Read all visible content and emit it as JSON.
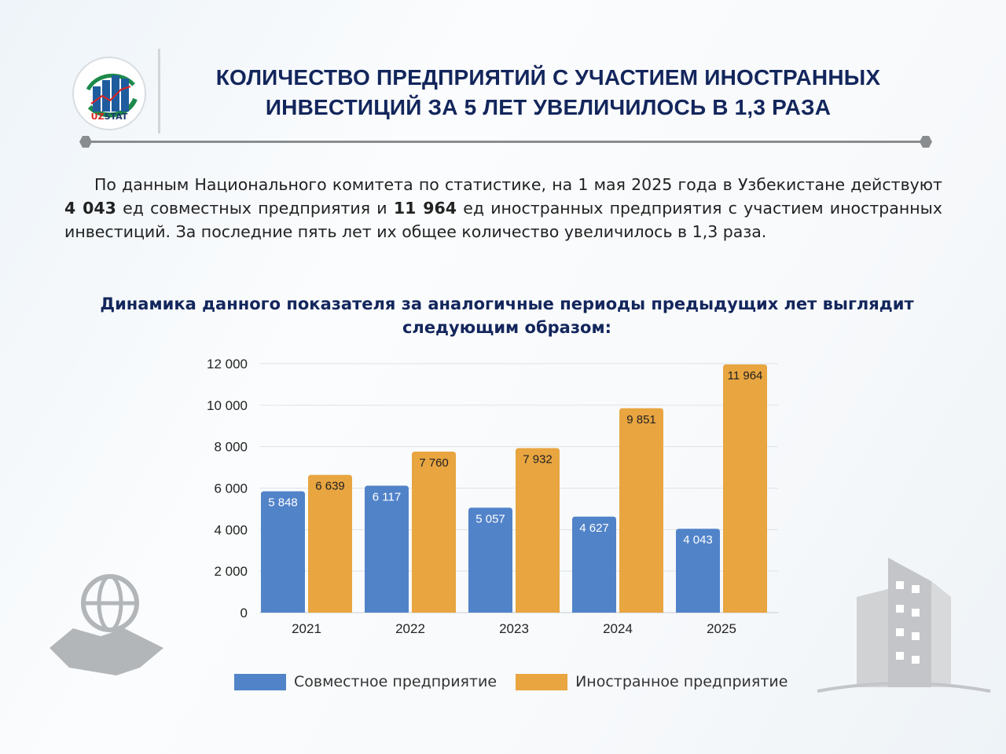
{
  "header": {
    "logo_text": "UZSTAT",
    "title_line1": "КОЛИЧЕСТВО ПРЕДПРИЯТИЙ С УЧАСТИЕМ ИНОСТРАННЫХ",
    "title_line2": "ИНВЕСТИЦИЙ ЗА 5 ЛЕТ УВЕЛИЧИЛОСЬ В 1,3 РАЗА"
  },
  "paragraph": {
    "part1": "По данным Национального комитета по статистике, на 1 мая 2025 года в Узбекистане действуют ",
    "bold1": "4 043",
    "part2": " ед совместных предприятия и ",
    "bold2": "11 964",
    "part3": " ед иностранных предприятия с участием иностранных инвестиций. За последние пять лет их общее количество увеличилось в 1,3 раза."
  },
  "subtitle": "Динамика данного показателя за аналогичные периоды предыдущих лет выглядит следующим образом:",
  "colors": {
    "joint": "#5183c9",
    "foreign": "#e8a540",
    "title": "#13265c"
  },
  "chart_data": {
    "type": "bar",
    "categories": [
      "2021",
      "2022",
      "2023",
      "2024",
      "2025"
    ],
    "series": [
      {
        "name": "Совместное предприятие",
        "values": [
          5848,
          6117,
          5057,
          4627,
          4043
        ],
        "labels": [
          "5 848",
          "6 117",
          "5 057",
          "4 627",
          "4 043"
        ]
      },
      {
        "name": "Иностранное предприятие",
        "values": [
          6639,
          7760,
          7932,
          9851,
          11964
        ],
        "labels": [
          "6 639",
          "7 760",
          "7 932",
          "9 851",
          "11 964"
        ]
      }
    ],
    "yticks": [
      0,
      2000,
      4000,
      6000,
      8000,
      10000,
      12000
    ],
    "ytick_labels": [
      "0",
      "2 000",
      "4 000",
      "6 000",
      "8 000",
      "10 000",
      "12 000"
    ],
    "ylim": [
      0,
      12000
    ],
    "grid": true,
    "legend": "bottom"
  }
}
